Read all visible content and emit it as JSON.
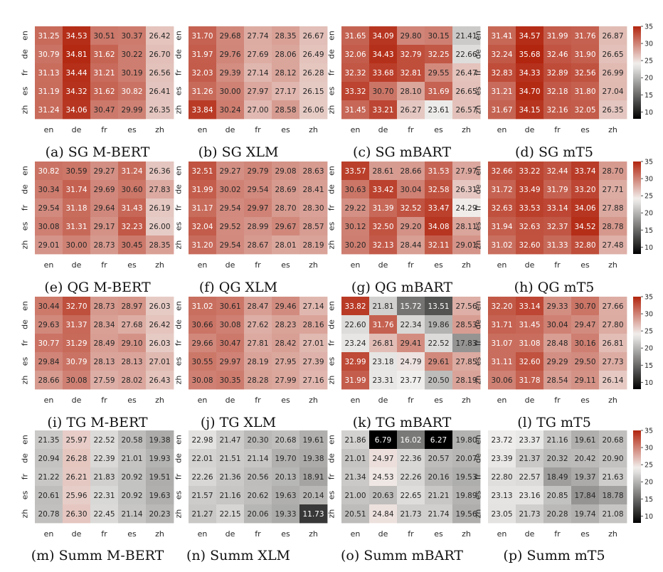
{
  "chart_data": [
    {
      "type": "heatmap",
      "caption": "(a) SG M-BERT",
      "x_labels": [
        "en",
        "de",
        "fr",
        "es",
        "zh"
      ],
      "y_labels": [
        "en",
        "de",
        "fr",
        "es",
        "zh"
      ],
      "values": [
        [
          31.25,
          34.53,
          30.51,
          30.37,
          26.42
        ],
        [
          30.79,
          34.81,
          31.62,
          30.22,
          26.7
        ],
        [
          31.13,
          34.44,
          31.21,
          30.19,
          26.56
        ],
        [
          31.19,
          34.32,
          31.62,
          30.82,
          26.41
        ],
        [
          31.24,
          34.06,
          30.47,
          29.99,
          26.35
        ]
      ]
    },
    {
      "type": "heatmap",
      "caption": "(b) SG XLM",
      "x_labels": [
        "en",
        "de",
        "fr",
        "es",
        "zh"
      ],
      "y_labels": [
        "en",
        "de",
        "fr",
        "es",
        "zh"
      ],
      "values": [
        [
          31.7,
          29.68,
          27.74,
          28.35,
          26.67
        ],
        [
          31.97,
          29.76,
          27.69,
          28.06,
          26.49
        ],
        [
          32.03,
          29.39,
          27.14,
          28.12,
          26.28
        ],
        [
          31.26,
          30.0,
          27.97,
          27.17,
          26.15
        ],
        [
          33.84,
          30.24,
          27.0,
          28.58,
          26.06
        ]
      ]
    },
    {
      "type": "heatmap",
      "caption": "(c) SG mBART",
      "x_labels": [
        "en",
        "de",
        "fr",
        "es",
        "zh"
      ],
      "y_labels": [
        "en",
        "de",
        "fr",
        "es",
        "zh"
      ],
      "values": [
        [
          31.65,
          34.09,
          29.8,
          30.15,
          21.41
        ],
        [
          32.06,
          34.43,
          32.79,
          32.25,
          22.66
        ],
        [
          32.32,
          33.68,
          32.81,
          29.55,
          26.47
        ],
        [
          33.32,
          30.7,
          28.1,
          31.69,
          26.65
        ],
        [
          31.45,
          33.21,
          26.27,
          23.61,
          26.57
        ]
      ]
    },
    {
      "type": "heatmap",
      "caption": "(d) SG mT5",
      "x_labels": [
        "en",
        "de",
        "fr",
        "es",
        "zh"
      ],
      "y_labels": [
        "en",
        "de",
        "fr",
        "es",
        "zh"
      ],
      "values": [
        [
          31.41,
          34.57,
          31.99,
          31.76,
          26.87
        ],
        [
          32.24,
          35.68,
          32.46,
          31.9,
          26.65
        ],
        [
          32.83,
          34.33,
          32.89,
          32.56,
          26.99
        ],
        [
          31.21,
          34.7,
          32.18,
          31.8,
          27.04
        ],
        [
          31.67,
          34.15,
          32.16,
          32.05,
          26.35
        ]
      ]
    },
    {
      "type": "heatmap",
      "caption": "(e) QG M-BERT",
      "x_labels": [
        "en",
        "de",
        "fr",
        "es",
        "zh"
      ],
      "y_labels": [
        "en",
        "de",
        "fr",
        "es",
        "zh"
      ],
      "values": [
        [
          30.82,
          30.59,
          29.27,
          31.24,
          26.36
        ],
        [
          30.34,
          31.74,
          29.69,
          30.6,
          27.83
        ],
        [
          29.54,
          31.18,
          29.64,
          31.43,
          26.19
        ],
        [
          30.08,
          31.31,
          29.17,
          32.23,
          26.0
        ],
        [
          29.01,
          30.0,
          28.73,
          30.45,
          28.35
        ]
      ]
    },
    {
      "type": "heatmap",
      "caption": "(f) QG XLM",
      "x_labels": [
        "en",
        "de",
        "fr",
        "es",
        "zh"
      ],
      "y_labels": [
        "en",
        "de",
        "fr",
        "es",
        "zh"
      ],
      "values": [
        [
          32.51,
          29.27,
          29.79,
          29.08,
          28.63
        ],
        [
          31.99,
          30.02,
          29.54,
          28.69,
          28.41
        ],
        [
          31.17,
          29.54,
          29.97,
          28.7,
          28.3
        ],
        [
          32.04,
          29.52,
          28.99,
          29.67,
          28.57
        ],
        [
          31.2,
          29.54,
          28.67,
          28.01,
          28.19
        ]
      ]
    },
    {
      "type": "heatmap",
      "caption": "(g) QG mBART",
      "x_labels": [
        "en",
        "de",
        "fr",
        "es",
        "zh"
      ],
      "y_labels": [
        "en",
        "de",
        "fr",
        "es",
        "zh"
      ],
      "values": [
        [
          33.57,
          28.61,
          28.66,
          31.53,
          27.97
        ],
        [
          30.63,
          33.42,
          30.04,
          32.58,
          26.31
        ],
        [
          29.22,
          31.39,
          32.52,
          33.47,
          24.29
        ],
        [
          30.12,
          32.5,
          29.2,
          34.08,
          28.11
        ],
        [
          30.2,
          32.13,
          28.44,
          32.11,
          29.01
        ]
      ]
    },
    {
      "type": "heatmap",
      "caption": "(h) QG mT5",
      "x_labels": [
        "en",
        "de",
        "fr",
        "es",
        "zh"
      ],
      "y_labels": [
        "en",
        "de",
        "fr",
        "es",
        "zh"
      ],
      "values": [
        [
          32.66,
          33.22,
          32.44,
          33.74,
          28.7
        ],
        [
          31.72,
          33.49,
          31.79,
          33.2,
          27.71
        ],
        [
          32.63,
          33.53,
          33.14,
          34.06,
          27.88
        ],
        [
          31.94,
          32.63,
          32.37,
          34.52,
          28.78
        ],
        [
          31.02,
          32.6,
          31.33,
          32.8,
          27.48
        ]
      ]
    },
    {
      "type": "heatmap",
      "caption": "(i) TG M-BERT",
      "x_labels": [
        "en",
        "de",
        "fr",
        "es",
        "zh"
      ],
      "y_labels": [
        "en",
        "de",
        "fr",
        "es",
        "zh"
      ],
      "values": [
        [
          30.44,
          32.7,
          28.73,
          28.97,
          26.03
        ],
        [
          29.63,
          31.37,
          28.34,
          27.68,
          26.42
        ],
        [
          30.77,
          31.29,
          28.49,
          29.1,
          26.03
        ],
        [
          29.84,
          30.79,
          28.13,
          28.13,
          27.01
        ],
        [
          28.66,
          30.08,
          27.59,
          28.02,
          26.43
        ]
      ]
    },
    {
      "type": "heatmap",
      "caption": "(j) TG XLM",
      "x_labels": [
        "en",
        "de",
        "fr",
        "es",
        "zh"
      ],
      "y_labels": [
        "en",
        "de",
        "fr",
        "es",
        "zh"
      ],
      "values": [
        [
          31.02,
          30.61,
          28.47,
          29.46,
          27.14
        ],
        [
          30.66,
          30.08,
          27.62,
          28.23,
          28.16
        ],
        [
          29.66,
          30.47,
          27.81,
          28.42,
          27.01
        ],
        [
          30.55,
          29.97,
          28.19,
          27.95,
          27.39
        ],
        [
          30.08,
          30.35,
          28.28,
          27.99,
          27.16
        ]
      ]
    },
    {
      "type": "heatmap",
      "caption": "(k) TG mBART",
      "x_labels": [
        "en",
        "de",
        "fr",
        "es",
        "zh"
      ],
      "y_labels": [
        "en",
        "de",
        "fr",
        "es",
        "zh"
      ],
      "values": [
        [
          33.82,
          21.81,
          15.72,
          13.51,
          27.56
        ],
        [
          22.6,
          31.76,
          22.34,
          19.86,
          28.53
        ],
        [
          23.24,
          26.81,
          29.41,
          22.52,
          17.83
        ],
        [
          32.99,
          23.18,
          24.79,
          29.61,
          27.85
        ],
        [
          31.99,
          23.31,
          23.77,
          20.5,
          28.19
        ]
      ]
    },
    {
      "type": "heatmap",
      "caption": "(l) TG mT5",
      "x_labels": [
        "en",
        "de",
        "fr",
        "es",
        "zh"
      ],
      "y_labels": [
        "en",
        "de",
        "fr",
        "es",
        "zh"
      ],
      "values": [
        [
          32.2,
          33.14,
          29.33,
          30.7,
          27.66
        ],
        [
          31.71,
          31.45,
          30.04,
          29.47,
          27.8
        ],
        [
          31.07,
          31.08,
          28.48,
          30.16,
          26.81
        ],
        [
          31.11,
          32.6,
          29.29,
          29.5,
          27.73
        ],
        [
          30.06,
          31.78,
          28.54,
          29.11,
          26.14
        ]
      ]
    },
    {
      "type": "heatmap",
      "caption": "(m) Summ M-BERT",
      "x_labels": [
        "en",
        "de",
        "fr",
        "es",
        "zh"
      ],
      "y_labels": [
        "en",
        "de",
        "fr",
        "es",
        "zh"
      ],
      "values": [
        [
          21.35,
          25.97,
          22.52,
          20.58,
          19.38
        ],
        [
          20.94,
          26.28,
          22.39,
          21.01,
          19.93
        ],
        [
          21.22,
          26.21,
          21.83,
          20.92,
          19.51
        ],
        [
          20.61,
          25.96,
          22.31,
          20.92,
          19.63
        ],
        [
          20.78,
          26.3,
          22.45,
          21.14,
          20.23
        ]
      ]
    },
    {
      "type": "heatmap",
      "caption": "(n) Summ XLM",
      "x_labels": [
        "en",
        "de",
        "fr",
        "es",
        "zh"
      ],
      "y_labels": [
        "en",
        "de",
        "fr",
        "es",
        "zh"
      ],
      "values": [
        [
          22.98,
          21.47,
          20.3,
          20.68,
          19.61
        ],
        [
          22.01,
          21.51,
          21.14,
          19.7,
          19.38
        ],
        [
          22.26,
          21.36,
          20.56,
          20.13,
          18.91
        ],
        [
          21.57,
          21.16,
          20.62,
          19.63,
          20.14
        ],
        [
          21.27,
          22.15,
          20.06,
          19.33,
          11.73
        ]
      ]
    },
    {
      "type": "heatmap",
      "caption": "(o) Summ mBART",
      "x_labels": [
        "en",
        "de",
        "fr",
        "es",
        "zh"
      ],
      "y_labels": [
        "en",
        "de",
        "fr",
        "es",
        "zh"
      ],
      "values": [
        [
          21.86,
          6.79,
          16.02,
          6.27,
          19.8
        ],
        [
          21.01,
          24.97,
          22.36,
          20.57,
          20.07
        ],
        [
          21.34,
          24.53,
          22.26,
          20.16,
          19.53
        ],
        [
          21.0,
          20.63,
          22.65,
          21.21,
          19.89
        ],
        [
          20.51,
          24.84,
          21.73,
          21.74,
          19.56
        ]
      ]
    },
    {
      "type": "heatmap",
      "caption": "(p) Summ mT5",
      "x_labels": [
        "en",
        "de",
        "fr",
        "es",
        "zh"
      ],
      "y_labels": [
        "en",
        "de",
        "fr",
        "es",
        "zh"
      ],
      "values": [
        [
          23.72,
          23.37,
          21.16,
          19.61,
          20.68
        ],
        [
          23.39,
          21.37,
          20.32,
          20.42,
          20.9
        ],
        [
          22.8,
          22.57,
          18.49,
          19.37,
          21.63
        ],
        [
          23.13,
          23.16,
          20.85,
          17.84,
          18.78
        ],
        [
          23.05,
          21.73,
          20.28,
          19.74,
          21.08
        ]
      ]
    }
  ],
  "colorbar": {
    "ticks": [
      "35",
      "30",
      "25",
      "20",
      "15",
      "10"
    ],
    "range": [
      8,
      35
    ],
    "colors": {
      "low": "#000000",
      "mid": "#f2f1ef",
      "high": "#b2250e"
    }
  }
}
